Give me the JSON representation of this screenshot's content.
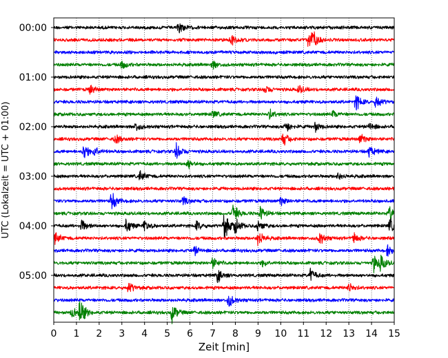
{
  "chart_data": {
    "type": "line",
    "title": "",
    "xlabel": "Zeit  [min]",
    "ylabel": "UTC (Lokalzeit = UTC + 01:00)",
    "xlim": [
      0,
      15
    ],
    "x_ticks": [
      "0",
      "1",
      "2",
      "3",
      "4",
      "5",
      "6",
      "7",
      "8",
      "9",
      "10",
      "11",
      "12",
      "13",
      "14",
      "15"
    ],
    "y_tick_labels": [
      "00:00",
      "01:00",
      "02:00",
      "03:00",
      "04:00",
      "05:00"
    ],
    "rows_per_hour": 4,
    "row_minutes": 15,
    "grid": "vertical dotted at each minute",
    "trace_colors": [
      "#000000",
      "#ff0000",
      "#0000ff",
      "#008000"
    ],
    "traces": [
      {
        "start": "00:00",
        "color": "#000000",
        "events": [
          [
            5.5,
            0.55
          ]
        ]
      },
      {
        "start": "00:15",
        "color": "#ff0000",
        "events": [
          [
            7.8,
            0.55
          ],
          [
            11.2,
            0.7
          ],
          [
            11.4,
            0.6
          ]
        ]
      },
      {
        "start": "00:30",
        "color": "#0000ff",
        "events": []
      },
      {
        "start": "00:45",
        "color": "#008000",
        "events": [
          [
            3.0,
            0.35
          ],
          [
            7.0,
            0.35
          ]
        ]
      },
      {
        "start": "01:00",
        "color": "#000000",
        "events": []
      },
      {
        "start": "01:15",
        "color": "#ff0000",
        "events": [
          [
            1.6,
            0.35
          ],
          [
            9.3,
            0.35
          ],
          [
            10.8,
            0.35
          ]
        ]
      },
      {
        "start": "01:30",
        "color": "#0000ff",
        "events": [
          [
            13.3,
            0.7
          ],
          [
            14.2,
            0.6
          ]
        ]
      },
      {
        "start": "01:45",
        "color": "#008000",
        "events": [
          [
            7.0,
            0.3
          ],
          [
            9.5,
            0.4
          ],
          [
            12.3,
            0.3
          ]
        ]
      },
      {
        "start": "02:00",
        "color": "#000000",
        "events": [
          [
            3.6,
            0.4
          ],
          [
            10.2,
            0.5
          ],
          [
            11.5,
            0.45
          ],
          [
            13.9,
            0.35
          ]
        ]
      },
      {
        "start": "02:15",
        "color": "#ff0000",
        "events": [
          [
            2.7,
            0.4
          ],
          [
            10.1,
            0.55
          ],
          [
            13.5,
            0.45
          ]
        ]
      },
      {
        "start": "02:30",
        "color": "#0000ff",
        "events": [
          [
            1.3,
            0.7
          ],
          [
            1.8,
            0.4
          ],
          [
            5.4,
            0.7
          ],
          [
            13.9,
            0.5
          ]
        ]
      },
      {
        "start": "02:45",
        "color": "#008000",
        "events": [
          [
            5.9,
            0.4
          ]
        ]
      },
      {
        "start": "03:00",
        "color": "#000000",
        "events": [
          [
            3.8,
            0.45
          ],
          [
            12.5,
            0.3
          ]
        ]
      },
      {
        "start": "03:15",
        "color": "#ff0000",
        "events": []
      },
      {
        "start": "03:30",
        "color": "#0000ff",
        "events": [
          [
            2.55,
            0.8
          ],
          [
            5.7,
            0.35
          ],
          [
            10.0,
            0.35
          ]
        ]
      },
      {
        "start": "03:45",
        "color": "#008000",
        "events": [
          [
            7.9,
            0.8
          ],
          [
            9.1,
            0.6
          ],
          [
            14.8,
            0.7
          ]
        ]
      },
      {
        "start": "04:00",
        "color": "#000000",
        "events": [
          [
            1.2,
            0.55
          ],
          [
            3.2,
            0.6
          ],
          [
            4.0,
            0.45
          ],
          [
            6.3,
            0.4
          ],
          [
            7.5,
            1.2
          ],
          [
            8.0,
            0.6
          ],
          [
            9.0,
            0.5
          ],
          [
            14.8,
            0.6
          ]
        ]
      },
      {
        "start": "04:15",
        "color": "#ff0000",
        "events": [
          [
            0.05,
            0.55
          ],
          [
            9.0,
            0.7
          ],
          [
            11.7,
            0.55
          ],
          [
            13.2,
            0.45
          ]
        ]
      },
      {
        "start": "04:30",
        "color": "#0000ff",
        "events": [
          [
            6.2,
            0.35
          ],
          [
            14.7,
            0.45
          ]
        ]
      },
      {
        "start": "04:45",
        "color": "#008000",
        "events": [
          [
            7.0,
            0.45
          ],
          [
            9.2,
            0.3
          ],
          [
            14.1,
            0.7
          ],
          [
            14.4,
            0.6
          ]
        ]
      },
      {
        "start": "05:00",
        "color": "#000000",
        "events": [
          [
            7.2,
            0.6
          ],
          [
            11.3,
            0.55
          ]
        ]
      },
      {
        "start": "05:15",
        "color": "#ff0000",
        "events": [
          [
            3.3,
            0.5
          ],
          [
            13.0,
            0.4
          ]
        ]
      },
      {
        "start": "05:30",
        "color": "#0000ff",
        "events": [
          [
            7.7,
            0.6
          ]
        ]
      },
      {
        "start": "05:45",
        "color": "#008000",
        "events": [
          [
            0.8,
            0.45
          ],
          [
            1.15,
            1.2
          ],
          [
            5.2,
            0.8
          ]
        ]
      }
    ]
  }
}
